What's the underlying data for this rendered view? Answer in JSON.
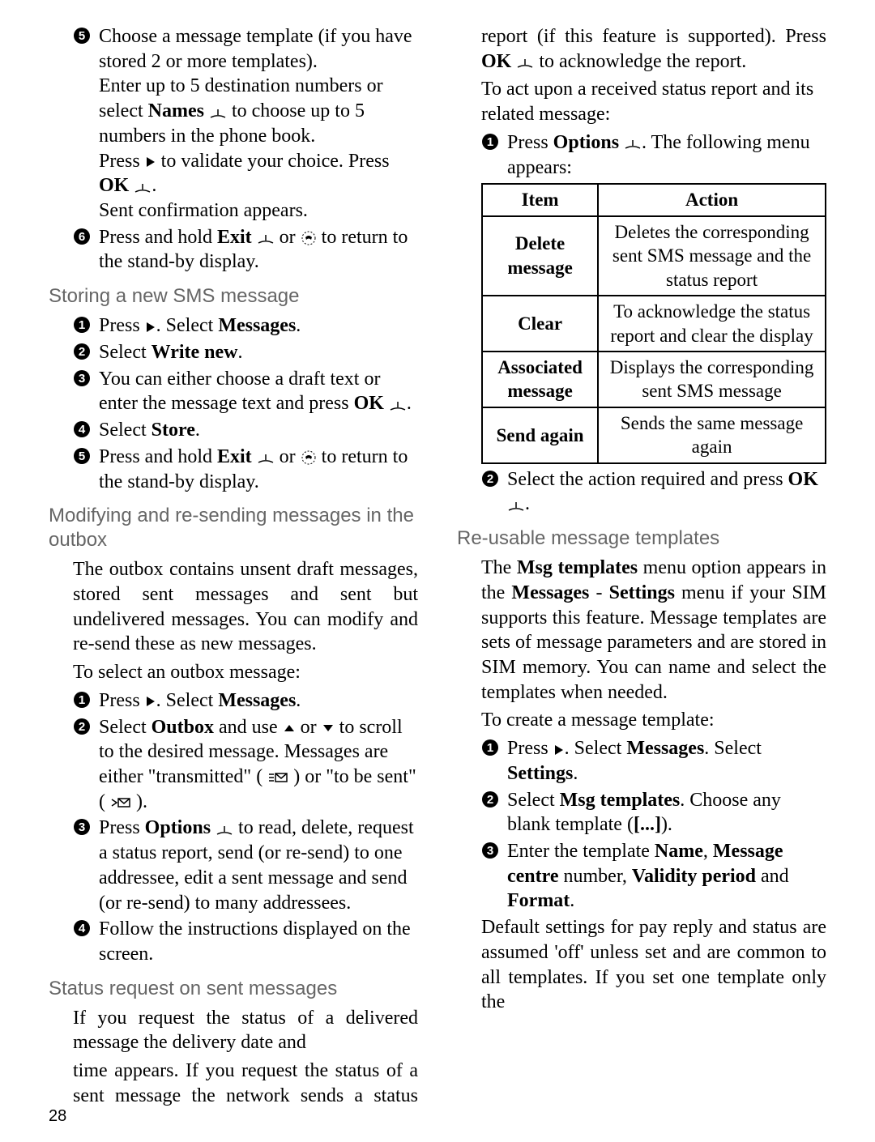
{
  "pageNumber": "28",
  "col1": {
    "stepsA": {
      "s5": "Choose a message template (if you have stored 2 or more templates).\nEnter up to 5 destination numbers or select <b>Names</b> {softkey} to choose up to 5 numbers in the phone book.\nPress {right} to validate your choice. Press <b>OK</b> {softkey}.\nSent confirmation appears.",
      "s6": "Press and hold <b>Exit</b> {softkey} or {end} to return to the stand-by display."
    },
    "h1": "Storing a new SMS message",
    "stepsB": {
      "s1": "Press {right}. Select <b>Messages</b>.",
      "s2": "Select <b>Write new</b>.",
      "s3": "You can either choose a draft text or enter the message text and press <b>OK</b> {softkey}.",
      "s4": "Select <b>Store</b>.",
      "s5": "Press and hold <b>Exit</b> {softkey} or {end} to return to the stand-by display."
    },
    "h2": "Modifying and re-sending messages in the outbox",
    "p1": "The outbox contains unsent draft messages, stored sent messages and sent but undelivered messages. You can modify and re-send these as new messages.",
    "p2": "To select an outbox message:",
    "stepsC": {
      "s1": "Press {right}. Select <b>Messages</b>.",
      "s2": "Select <b>Outbox</b> and use {up} or {down} to scroll to the desired message. Messages are either \"transmitted\" ( {msg1} ) or \"to be sent\" ( {msg2} ).",
      "s3": "Press <b>Options</b> {softkey} to read, delete, request a status report, send (or re-send) to one addressee, edit a sent message and send (or re-send) to many addressees.",
      "s4": "Follow the instructions displayed on the screen."
    },
    "h3": "Status request on sent messages",
    "p3": "If you request the status of a delivered message the delivery date and"
  },
  "col2": {
    "p1": "time appears. If you request the status of a sent message the network sends a status report (if this feature is supported). Press <b>OK</b> {softkey} to acknowledge the report.",
    "p2": "To act upon a received status report and its related message:",
    "step1": "Press <b>Options</b> {softkey}. The following menu appears:",
    "table": {
      "headers": [
        "Item",
        "Action"
      ],
      "rows": [
        [
          "Delete message",
          "Deletes the corresponding sent SMS message and the status report"
        ],
        [
          "Clear",
          "To acknowledge the status report and clear the display"
        ],
        [
          "Associated message",
          "Displays the corresponding sent SMS message"
        ],
        [
          "Send again",
          "Sends the same message again"
        ]
      ]
    },
    "step2": "Select the action required and press <b>OK</b> {softkey}.",
    "h1": "Re-usable message templates",
    "p3": "The <b>Msg templates</b> menu option appears in the <b>Messages</b> - <b>Settings</b> menu if your SIM supports this feature. Message templates are sets of message parameters and are stored in SIM memory. You can name and select the templates when needed.",
    "p4": "To create a message template:",
    "stepsD": {
      "s1": "Press {right}. Select <b>Messages</b>. Select <b>Settings</b>.",
      "s2": "Select <b>Msg templates</b>. Choose any blank template (<b>[...]</b>).",
      "s3": "Enter the template <b>Name</b>, <b>Message centre</b> number, <b>Validity period</b> and <b>Format</b>."
    },
    "p5": "Default settings for pay reply and status are assumed 'off' unless set and are common to all templates. If you set one template only the"
  }
}
